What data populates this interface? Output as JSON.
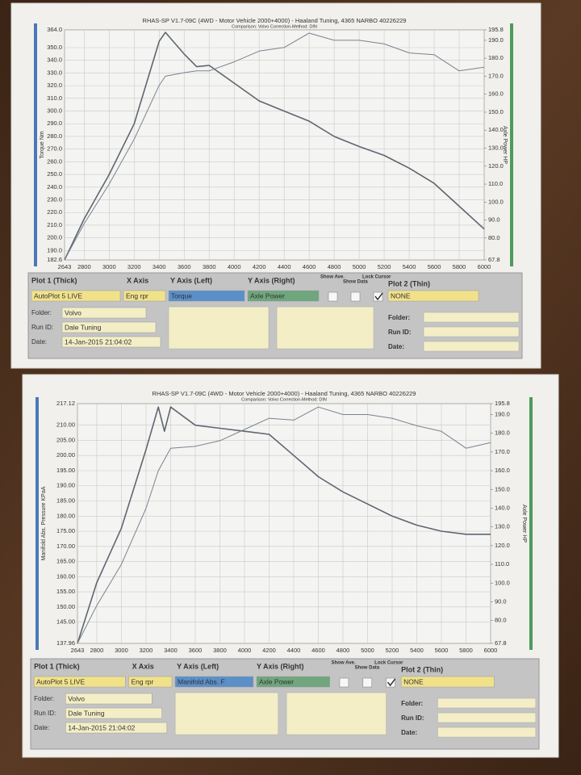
{
  "chart_data": [
    {
      "type": "line",
      "title": "RHAS-SP V1.7-09C  (4WD - Motor Vehicle 2000+4000) - Haaland Tuning, 4365 NARBO 40226229",
      "subtitle": "Comparison: Volvo   Correction-Method: DIN",
      "y_label": "Torque Nm",
      "y2_label": "Axle Power HP",
      "x": [
        2643,
        2800,
        3000,
        3200,
        3400,
        3450,
        3600,
        3700,
        3800,
        4000,
        4200,
        4400,
        4600,
        4800,
        5000,
        5200,
        5400,
        5600,
        5800,
        6000
      ],
      "series": [
        {
          "name": "Torque",
          "color": "#5f6670",
          "values": [
            182.6,
            215,
            250,
            290,
            355,
            362,
            345,
            335,
            336,
            322,
            308,
            300,
            292,
            280,
            272,
            265,
            255,
            243,
            225,
            207
          ]
        },
        {
          "name": "Axle Power",
          "color": "#7b8290",
          "axis": "y2",
          "values": [
            67.8,
            88,
            110,
            135,
            165,
            170,
            172,
            173,
            173,
            178,
            184,
            186,
            194,
            190,
            190,
            188,
            183,
            182,
            173,
            175
          ]
        }
      ],
      "xlim": [
        2643,
        6000
      ],
      "xticks": [
        2643,
        2800,
        3000,
        3200,
        3400,
        3600,
        3800,
        4000,
        4200,
        4400,
        4600,
        4800,
        5000,
        5200,
        5400,
        5600,
        5800,
        6000
      ],
      "ylim": [
        182.6,
        364
      ],
      "yticks": [
        {
          "value": 182.6,
          "label": "182.6"
        },
        {
          "value": 190,
          "label": "190.0"
        },
        {
          "value": 200,
          "label": "200.0"
        },
        {
          "value": 210,
          "label": "210.0"
        },
        {
          "value": 220,
          "label": "220.0"
        },
        {
          "value": 230,
          "label": "230.0"
        },
        {
          "value": 240,
          "label": "240.0"
        },
        {
          "value": 250,
          "label": "250.0"
        },
        {
          "value": 260,
          "label": "260.0"
        },
        {
          "value": 270,
          "label": "270.0"
        },
        {
          "value": 280,
          "label": "280.0"
        },
        {
          "value": 290,
          "label": "290.0"
        },
        {
          "value": 300,
          "label": "300.0"
        },
        {
          "value": 310,
          "label": "310.0"
        },
        {
          "value": 320,
          "label": "320.0"
        },
        {
          "value": 330,
          "label": "330.0"
        },
        {
          "value": 340,
          "label": "340.0"
        },
        {
          "value": 350,
          "label": "350.0"
        },
        {
          "value": 364,
          "label": "364.0"
        }
      ],
      "y2lim": [
        67.8,
        195.8
      ],
      "y2ticks": [
        {
          "value": 67.8,
          "label": "67.8"
        },
        {
          "value": 80,
          "label": "80.0"
        },
        {
          "value": 90,
          "label": "90.0"
        },
        {
          "value": 100,
          "label": "100.0"
        },
        {
          "value": 110,
          "label": "110.0"
        },
        {
          "value": 120,
          "label": "120.0"
        },
        {
          "value": 130,
          "label": "130.0"
        },
        {
          "value": 140,
          "label": "140.0"
        },
        {
          "value": 150,
          "label": "150.0"
        },
        {
          "value": 160,
          "label": "160.0"
        },
        {
          "value": 170,
          "label": "170.0"
        },
        {
          "value": 180,
          "label": "180.0"
        },
        {
          "value": 190,
          "label": "190.0"
        },
        {
          "value": 195.8,
          "label": "195.8"
        }
      ],
      "grid": true
    },
    {
      "type": "line",
      "title": "RHAS-SP V1.7-09C  (4WD - Motor Vehicle 2000+4000) - Haaland Tuning, 4365 NARBO 40226229",
      "subtitle": "Comparison: Volvo   Correction-Method: DIN",
      "y_label": "Manifold Abs. Pressure KPaA",
      "y2_label": "Axle Power HP",
      "x": [
        2643,
        2800,
        3000,
        3200,
        3300,
        3350,
        3400,
        3600,
        3800,
        4000,
        4200,
        4400,
        4600,
        4800,
        5000,
        5200,
        5400,
        5600,
        5800,
        6000
      ],
      "series": [
        {
          "name": "Manifold Abs. Pressure",
          "color": "#5f6670",
          "values": [
            137.96,
            158,
            176,
            202,
            216,
            208,
            216,
            210,
            209,
            208,
            207,
            200,
            193,
            188,
            184,
            180,
            177,
            175,
            174,
            174
          ]
        },
        {
          "name": "Axle Power",
          "color": "#7b8290",
          "axis": "y2",
          "values": [
            67.8,
            88,
            110,
            140,
            160,
            166,
            172,
            173,
            176,
            182,
            188,
            187,
            194,
            190,
            190,
            188,
            184,
            181,
            172,
            175
          ]
        }
      ],
      "xlim": [
        2643,
        6000
      ],
      "xticks": [
        2643,
        2800,
        3000,
        3200,
        3400,
        3600,
        3800,
        4000,
        4200,
        4400,
        4600,
        4800,
        5000,
        5200,
        5400,
        5600,
        5800,
        6000
      ],
      "ylim": [
        137.96,
        217.12
      ],
      "yticks": [
        {
          "value": 137.96,
          "label": "137.96"
        },
        {
          "value": 145,
          "label": "145.00"
        },
        {
          "value": 150,
          "label": "150.00"
        },
        {
          "value": 155,
          "label": "155.00"
        },
        {
          "value": 160,
          "label": "160.00"
        },
        {
          "value": 165,
          "label": "165.00"
        },
        {
          "value": 170,
          "label": "170.00"
        },
        {
          "value": 175,
          "label": "175.00"
        },
        {
          "value": 180,
          "label": "180.00"
        },
        {
          "value": 185,
          "label": "185.00"
        },
        {
          "value": 190,
          "label": "190.00"
        },
        {
          "value": 195,
          "label": "195.00"
        },
        {
          "value": 200,
          "label": "200.00"
        },
        {
          "value": 205,
          "label": "205.00"
        },
        {
          "value": 210,
          "label": "210.00"
        },
        {
          "value": 217.12,
          "label": "217.12"
        }
      ],
      "y2lim": [
        67.8,
        195.8
      ],
      "y2ticks": [
        {
          "value": 67.8,
          "label": "67.8"
        },
        {
          "value": 80,
          "label": "80.0"
        },
        {
          "value": 90,
          "label": "90.0"
        },
        {
          "value": 100,
          "label": "100.0"
        },
        {
          "value": 110,
          "label": "110.0"
        },
        {
          "value": 120,
          "label": "120.0"
        },
        {
          "value": 130,
          "label": "130.0"
        },
        {
          "value": 140,
          "label": "140.0"
        },
        {
          "value": 150,
          "label": "150.0"
        },
        {
          "value": 160,
          "label": "160.0"
        },
        {
          "value": 170,
          "label": "170.0"
        },
        {
          "value": 180,
          "label": "180.0"
        },
        {
          "value": 190,
          "label": "190.0"
        },
        {
          "value": 195.8,
          "label": "195.8"
        }
      ],
      "grid": true
    }
  ],
  "panels": [
    {
      "plot1_label": "Plot 1 (Thick)",
      "x_axis_label": "X Axis",
      "y_left_label": "Y Axis (Left)",
      "y_right_label": "Y Axis (Right)",
      "show_ave_label": "Show Ave.",
      "show_data_label": "Show Data",
      "lock_cursor_label": "Lock Cursor",
      "plot2_label": "Plot 2 (Thin)",
      "plot1": "AutoPlot 5 LIVE",
      "x_axis": "Eng rpr",
      "y_left": "Torque",
      "y_right": "Axle Power",
      "plot2": "NONE",
      "folder_label": "Folder:",
      "folder": "Volvo",
      "run_id_label": "Run ID:",
      "run_id": "Dale Tuning",
      "date_label": "Date:",
      "date": "14-Jan-2015  21:04:02",
      "plot2_folder_label": "Folder:",
      "plot2_run_id_label": "Run ID:",
      "plot2_date_label": "Date:"
    },
    {
      "plot1_label": "Plot 1 (Thick)",
      "x_axis_label": "X Axis",
      "y_left_label": "Y Axis (Left)",
      "y_right_label": "Y Axis (Right)",
      "show_ave_label": "Show Ave.",
      "show_data_label": "Show Data",
      "lock_cursor_label": "Lock Cursor",
      "plot2_label": "Plot 2 (Thin)",
      "plot1": "AutoPlot 5 LIVE",
      "x_axis": "Eng rpr",
      "y_left": "Manifold Abs. F",
      "y_right": "Axle Power",
      "plot2": "NONE",
      "folder_label": "Folder:",
      "folder": "Volvo",
      "run_id_label": "Run ID:",
      "run_id": "Dale Tuning",
      "date_label": "Date:",
      "date": "14-Jan-2015  21:04:02",
      "plot2_folder_label": "Folder:",
      "plot2_run_id_label": "Run ID:",
      "plot2_date_label": "Date:"
    }
  ]
}
